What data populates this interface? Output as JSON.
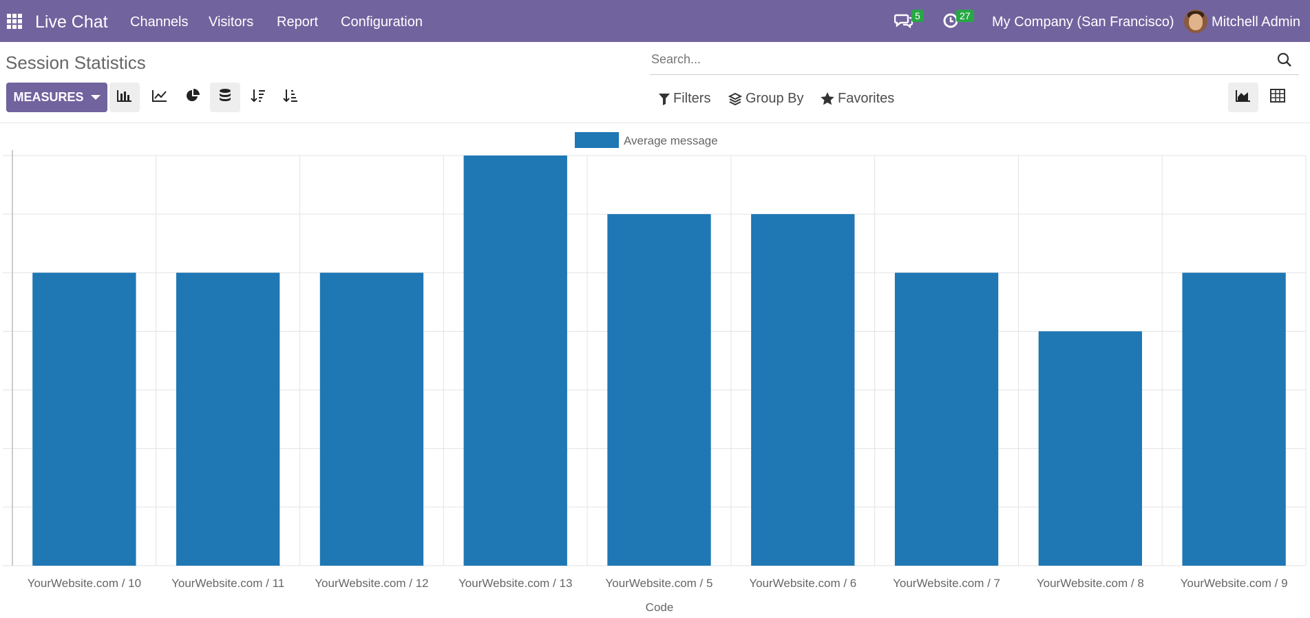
{
  "app": {
    "name": "Live Chat"
  },
  "nav": {
    "items": [
      "Channels",
      "Visitors",
      "Report",
      "Configuration"
    ]
  },
  "systray": {
    "messages_count": "5",
    "activities_count": "27",
    "company": "My Company (San Francisco)",
    "user": "Mitchell Admin"
  },
  "page": {
    "title": "Session Statistics"
  },
  "search": {
    "placeholder": "Search..."
  },
  "toolbar": {
    "measures_label": "MEASURES"
  },
  "filters": {
    "filters_label": "Filters",
    "groupby_label": "Group By",
    "favorites_label": "Favorites"
  },
  "colors": {
    "primary": "#71639e",
    "bar": "#1f77b4",
    "badge": "#28a745"
  },
  "icons": [
    "apps-grid-icon",
    "chat-icon",
    "clock-icon",
    "search-icon",
    "bar-chart-icon",
    "line-chart-icon",
    "pie-chart-icon",
    "stacked-icon",
    "sort-descending-icon",
    "sort-ascending-icon",
    "filter-icon",
    "layers-icon",
    "star-icon",
    "graph-view-icon",
    "pivot-view-icon"
  ],
  "chart_data": {
    "type": "bar",
    "categories": [
      "YourWebsite.com / 10",
      "YourWebsite.com / 11",
      "YourWebsite.com / 12",
      "YourWebsite.com / 13",
      "YourWebsite.com / 5",
      "YourWebsite.com / 6",
      "YourWebsite.com / 7",
      "YourWebsite.com / 8",
      "YourWebsite.com / 9"
    ],
    "series": [
      {
        "name": "Average message",
        "values": [
          5,
          5,
          5,
          7,
          6,
          6,
          5,
          4,
          5
        ]
      }
    ],
    "xlabel": "Code",
    "ylabel": "",
    "ylim": [
      0,
      7
    ],
    "grid": true,
    "legend": "top-center"
  }
}
